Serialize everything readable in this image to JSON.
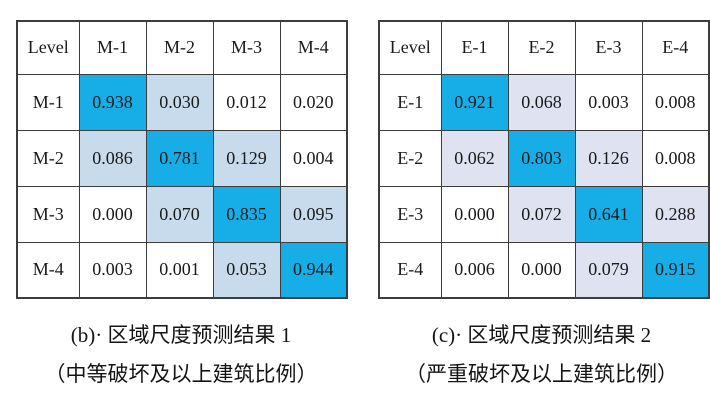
{
  "colors": {
    "diagonal": "#17ade6",
    "border": "#3d3d3d",
    "background": "#ffffff",
    "text": "#1a1a1a"
  },
  "tables": [
    {
      "name": "regional-prediction-1",
      "header": [
        "Level",
        "M-1",
        "M-2",
        "M-3",
        "M-4"
      ],
      "light_color": "#c8dbed",
      "rows": [
        {
          "label": "M-1",
          "cells": [
            {
              "v": "0.938",
              "s": "diag"
            },
            {
              "v": "0.030",
              "s": "light"
            },
            {
              "v": "0.012",
              "s": "plain"
            },
            {
              "v": "0.020",
              "s": "plain"
            }
          ]
        },
        {
          "label": "M-2",
          "cells": [
            {
              "v": "0.086",
              "s": "light"
            },
            {
              "v": "0.781",
              "s": "diag"
            },
            {
              "v": "0.129",
              "s": "light"
            },
            {
              "v": "0.004",
              "s": "plain"
            }
          ]
        },
        {
          "label": "M-3",
          "cells": [
            {
              "v": "0.000",
              "s": "plain"
            },
            {
              "v": "0.070",
              "s": "light"
            },
            {
              "v": "0.835",
              "s": "diag"
            },
            {
              "v": "0.095",
              "s": "light"
            }
          ]
        },
        {
          "label": "M-4",
          "cells": [
            {
              "v": "0.003",
              "s": "plain"
            },
            {
              "v": "0.001",
              "s": "plain"
            },
            {
              "v": "0.053",
              "s": "light"
            },
            {
              "v": "0.944",
              "s": "diag"
            }
          ]
        }
      ],
      "caption_line1": "(b)· 区域尺度预测结果 1",
      "caption_line2": "（中等破坏及以上建筑比例）"
    },
    {
      "name": "regional-prediction-2",
      "header": [
        "Level",
        "E-1",
        "E-2",
        "E-3",
        "E-4"
      ],
      "light_color": "#dfe2f0",
      "rows": [
        {
          "label": "E-1",
          "cells": [
            {
              "v": "0.921",
              "s": "diag"
            },
            {
              "v": "0.068",
              "s": "light"
            },
            {
              "v": "0.003",
              "s": "plain"
            },
            {
              "v": "0.008",
              "s": "plain"
            }
          ]
        },
        {
          "label": "E-2",
          "cells": [
            {
              "v": "0.062",
              "s": "light"
            },
            {
              "v": "0.803",
              "s": "diag"
            },
            {
              "v": "0.126",
              "s": "light"
            },
            {
              "v": "0.008",
              "s": "plain"
            }
          ]
        },
        {
          "label": "E-3",
          "cells": [
            {
              "v": "0.000",
              "s": "plain"
            },
            {
              "v": "0.072",
              "s": "light"
            },
            {
              "v": "0.641",
              "s": "diag"
            },
            {
              "v": "0.288",
              "s": "light"
            }
          ]
        },
        {
          "label": "E-4",
          "cells": [
            {
              "v": "0.006",
              "s": "plain"
            },
            {
              "v": "0.000",
              "s": "plain"
            },
            {
              "v": "0.079",
              "s": "light"
            },
            {
              "v": "0.915",
              "s": "diag"
            }
          ]
        }
      ],
      "caption_line1": "(c)· 区域尺度预测结果 2",
      "caption_line2": "（严重破坏及以上建筑比例）"
    }
  ],
  "chart_data": [
    {
      "type": "heatmap",
      "title": "(b) 区域尺度预测结果 1",
      "subtitle": "（中等破坏及以上建筑比例）",
      "corner_label": "Level",
      "x_labels": [
        "M-1",
        "M-2",
        "M-3",
        "M-4"
      ],
      "y_labels": [
        "M-1",
        "M-2",
        "M-3",
        "M-4"
      ],
      "values": [
        [
          0.938,
          0.03,
          0.012,
          0.02
        ],
        [
          0.086,
          0.781,
          0.129,
          0.004
        ],
        [
          0.0,
          0.07,
          0.835,
          0.095
        ],
        [
          0.003,
          0.001,
          0.053,
          0.944
        ]
      ],
      "value_range": [
        0,
        1
      ],
      "legend_position": "none",
      "color_rule": "diagonal cells bright cyan-blue #17ade6; off-diagonal cells >= 0.03 light blue #c8dbed; others white"
    },
    {
      "type": "heatmap",
      "title": "(c) 区域尺度预测结果 2",
      "subtitle": "（严重破坏及以上建筑比例）",
      "corner_label": "Level",
      "x_labels": [
        "E-1",
        "E-2",
        "E-3",
        "E-4"
      ],
      "y_labels": [
        "E-1",
        "E-2",
        "E-3",
        "E-4"
      ],
      "values": [
        [
          0.921,
          0.068,
          0.003,
          0.008
        ],
        [
          0.062,
          0.803,
          0.126,
          0.008
        ],
        [
          0.0,
          0.072,
          0.641,
          0.288
        ],
        [
          0.006,
          0.0,
          0.079,
          0.915
        ]
      ],
      "value_range": [
        0,
        1
      ],
      "legend_position": "none",
      "color_rule": "diagonal cells bright cyan-blue #17ade6; off-diagonal cells >= 0.03 light lavender #dfe2f0; others white"
    }
  ]
}
